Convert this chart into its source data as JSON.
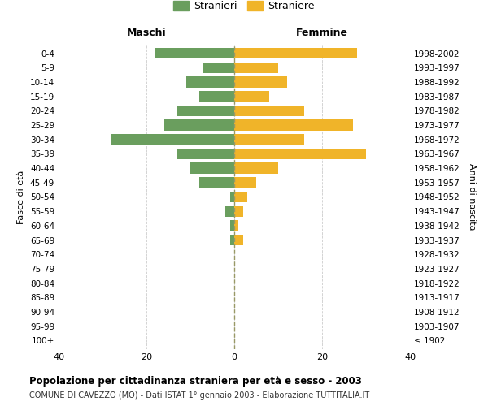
{
  "age_groups": [
    "100+",
    "95-99",
    "90-94",
    "85-89",
    "80-84",
    "75-79",
    "70-74",
    "65-69",
    "60-64",
    "55-59",
    "50-54",
    "45-49",
    "40-44",
    "35-39",
    "30-34",
    "25-29",
    "20-24",
    "15-19",
    "10-14",
    "5-9",
    "0-4"
  ],
  "birth_years": [
    "≤ 1902",
    "1903-1907",
    "1908-1912",
    "1913-1917",
    "1918-1922",
    "1923-1927",
    "1928-1932",
    "1933-1937",
    "1938-1942",
    "1943-1947",
    "1948-1952",
    "1953-1957",
    "1958-1962",
    "1963-1967",
    "1968-1972",
    "1973-1977",
    "1978-1982",
    "1983-1987",
    "1988-1992",
    "1993-1997",
    "1998-2002"
  ],
  "maschi": [
    0,
    0,
    0,
    0,
    0,
    0,
    0,
    1,
    1,
    2,
    1,
    8,
    10,
    13,
    28,
    16,
    13,
    8,
    11,
    7,
    18
  ],
  "femmine": [
    0,
    0,
    0,
    0,
    0,
    0,
    0,
    2,
    1,
    2,
    3,
    5,
    10,
    30,
    16,
    27,
    16,
    8,
    12,
    10,
    28
  ],
  "color_maschi": "#6a9e5e",
  "color_femmine": "#f0b429",
  "xlim": 40,
  "title": "Popolazione per cittadinanza straniera per età e sesso - 2003",
  "subtitle": "COMUNE DI CAVEZZO (MO) - Dati ISTAT 1° gennaio 2003 - Elaborazione TUTTITALIA.IT",
  "legend_maschi": "Stranieri",
  "legend_femmine": "Straniere",
  "label_fasce": "Fasce di età",
  "label_anni": "Anni di nascita",
  "label_maschi": "Maschi",
  "label_femmine": "Femmine",
  "background_color": "#ffffff",
  "grid_color": "#cccccc"
}
